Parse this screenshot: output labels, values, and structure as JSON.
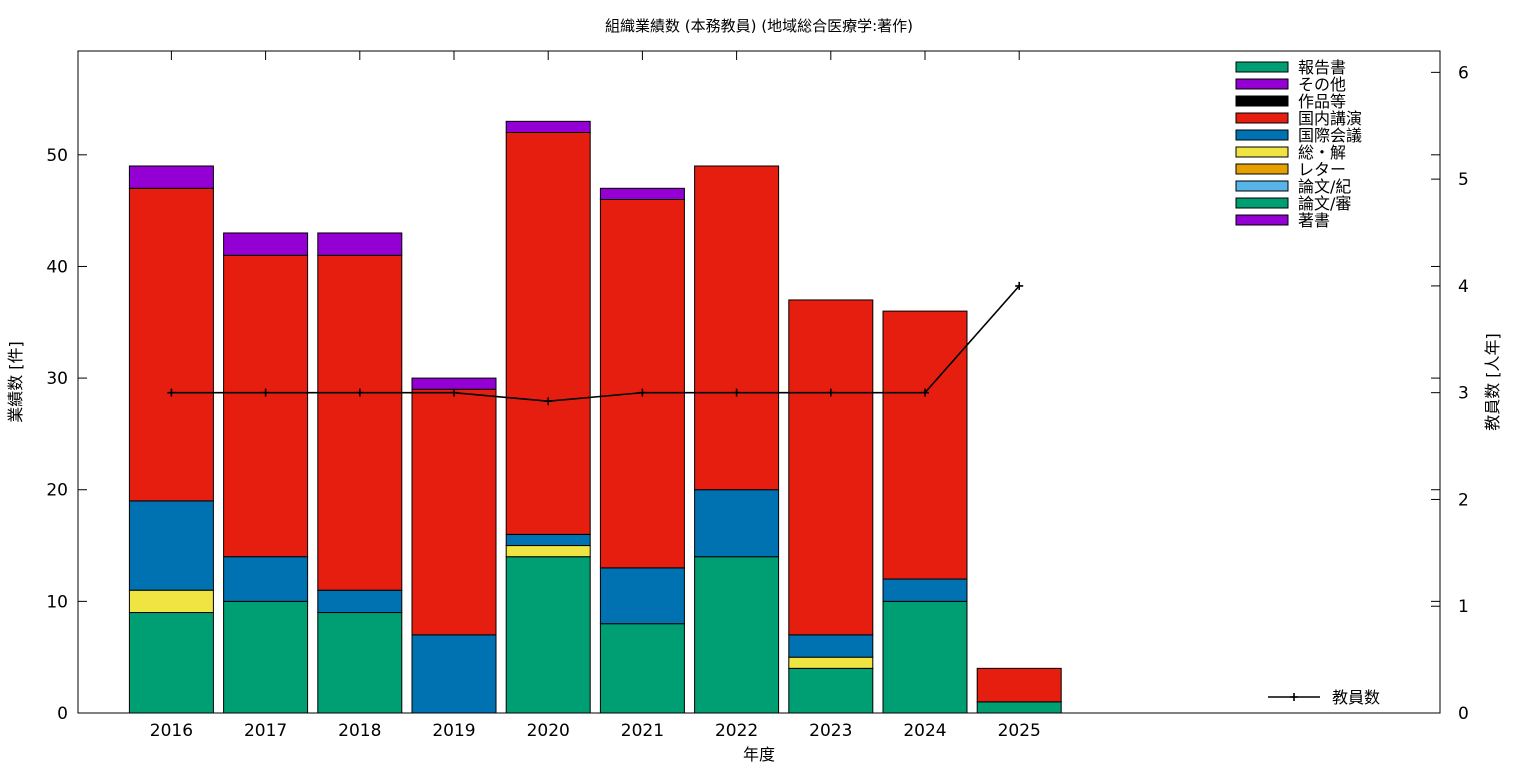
{
  "chart_data": {
    "type": "bar",
    "stacked": true,
    "title": "組織業績数 (本務教員) (地域総合医療学:著作)",
    "xlabel": "年度",
    "ylabel": "業績数 [件]",
    "y2label": "教員数 [人年]",
    "ylim": [
      0,
      59.3
    ],
    "y2lim": [
      0,
      6.2
    ],
    "yticks": [
      0,
      10,
      20,
      30,
      40,
      50
    ],
    "y2ticks": [
      0,
      1,
      2,
      3,
      4,
      5,
      6
    ],
    "grid": false,
    "legend_position": "top-right",
    "categories": [
      "2016",
      "2017",
      "2018",
      "2019",
      "2020",
      "2021",
      "2022",
      "2023",
      "2024",
      "2025"
    ],
    "series": [
      {
        "name": "論文/審",
        "color": "#009e73",
        "values": [
          9,
          10,
          9,
          0,
          14,
          8,
          14,
          4,
          10,
          1
        ]
      },
      {
        "name": "論文/紀",
        "color": "#56b4e9",
        "values": [
          0,
          0,
          0,
          0,
          0,
          0,
          0,
          0,
          0,
          0
        ]
      },
      {
        "name": "レター",
        "color": "#e69f00",
        "values": [
          0,
          0,
          0,
          0,
          0,
          0,
          0,
          0,
          0,
          0
        ]
      },
      {
        "name": "総・解",
        "color": "#f0e442",
        "values": [
          2,
          0,
          0,
          0,
          1,
          0,
          0,
          1,
          0,
          0
        ]
      },
      {
        "name": "国際会議",
        "color": "#0072b2",
        "values": [
          8,
          4,
          2,
          7,
          1,
          5,
          6,
          2,
          2,
          0
        ]
      },
      {
        "name": "国内講演",
        "color": "#e51e10",
        "values": [
          28,
          27,
          30,
          22,
          36,
          33,
          29,
          30,
          24,
          3
        ]
      },
      {
        "name": "作品等",
        "color": "#000000",
        "values": [
          0,
          0,
          0,
          0,
          0,
          0,
          0,
          0,
          0,
          0
        ]
      },
      {
        "name": "その他",
        "color": "#9400d3",
        "values": [
          2,
          2,
          2,
          1,
          1,
          1,
          0,
          0,
          0,
          0
        ]
      },
      {
        "name": "報告書",
        "color": "#009e73",
        "values": [
          0,
          0,
          0,
          0,
          0,
          0,
          0,
          0,
          0,
          0
        ]
      },
      {
        "name": "著書",
        "color": "#9400d3",
        "values": [
          0,
          0,
          0,
          0,
          0,
          0,
          0,
          0,
          0,
          0
        ]
      }
    ],
    "legend_order": [
      "報告書",
      "その他",
      "作品等",
      "国内講演",
      "国際会議",
      "総・解",
      "レター",
      "論文/紀",
      "論文/審",
      "著書"
    ],
    "line_series": {
      "name": "教員数",
      "axis": "y2",
      "color": "#000000",
      "x": [
        "2016",
        "2017",
        "2018",
        "2019",
        "2020",
        "2021",
        "2022",
        "2023",
        "2024",
        "2025"
      ],
      "values": [
        3,
        3,
        3,
        3,
        2.92,
        3,
        3,
        3,
        3,
        4
      ]
    }
  }
}
